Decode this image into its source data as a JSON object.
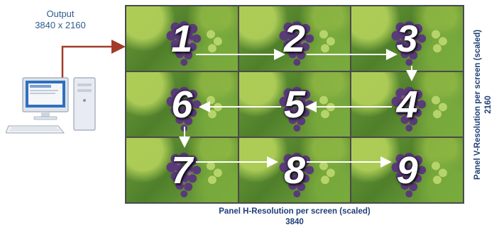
{
  "output": {
    "title": "Output",
    "resolution": "3840 x 2160"
  },
  "panels": [
    "1",
    "2",
    "3",
    "6",
    "5",
    "4",
    "7",
    "8",
    "9"
  ],
  "vertical_axis": {
    "label": "Panel V-Resolution per screen (scaled)",
    "value": "2160"
  },
  "horizontal_axis": {
    "label": "Panel H-Resolution per screen (scaled)",
    "value": "3840"
  },
  "colors": {
    "label_blue": "#1f3f77",
    "cable_red": "#a33a2a",
    "monitor_blue": "#2f6fbf"
  }
}
